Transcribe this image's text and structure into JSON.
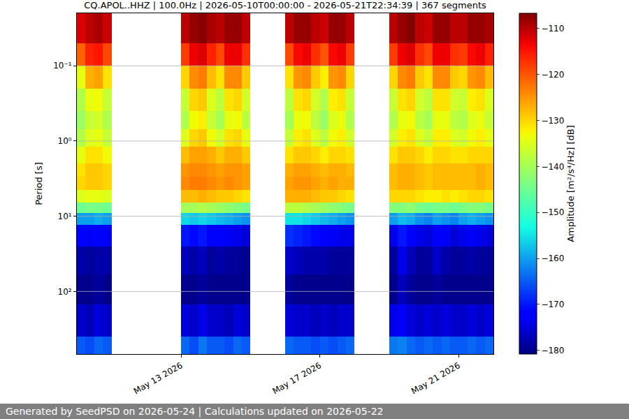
{
  "chart_data": {
    "type": "heatmap",
    "title": "CQ.APOL..HHZ | 100.0Hz | 2026-05-10T00:00:00 - 2026-05-21T22:34:39 | 367 segments",
    "y_label": "Period [s]",
    "x_edges": [
      "2026-05-10 00:00",
      "2026-05-10 06:00",
      "2026-05-10 12:00",
      "2026-05-10 18:00",
      "2026-05-11 00:00",
      "2026-05-11 06:00",
      "2026-05-11 12:00",
      "2026-05-11 18:00",
      "2026-05-12 00:00",
      "2026-05-12 06:00",
      "2026-05-12 12:00",
      "2026-05-12 18:00",
      "2026-05-13 00:00",
      "2026-05-13 06:00",
      "2026-05-13 12:00",
      "2026-05-13 18:00",
      "2026-05-14 00:00",
      "2026-05-14 06:00",
      "2026-05-14 12:00",
      "2026-05-14 18:00",
      "2026-05-15 00:00",
      "2026-05-15 06:00",
      "2026-05-15 12:00",
      "2026-05-15 18:00",
      "2026-05-16 00:00",
      "2026-05-16 06:00",
      "2026-05-16 12:00",
      "2026-05-16 18:00",
      "2026-05-17 00:00",
      "2026-05-17 06:00",
      "2026-05-17 12:00",
      "2026-05-17 18:00",
      "2026-05-18 00:00",
      "2026-05-18 06:00",
      "2026-05-18 12:00",
      "2026-05-18 18:00",
      "2026-05-19 00:00",
      "2026-05-19 06:00",
      "2026-05-19 12:00",
      "2026-05-19 18:00",
      "2026-05-20 00:00",
      "2026-05-20 06:00",
      "2026-05-20 12:00",
      "2026-05-20 18:00",
      "2026-05-21 00:00",
      "2026-05-21 06:00",
      "2026-05-21 12:00",
      "2026-05-21 18:00",
      "2026-05-22 00:00"
    ],
    "y_edges": [
      0.02,
      0.05,
      0.1,
      0.2,
      0.4,
      0.7,
      1.2,
      2,
      3,
      4.5,
      6.5,
      9,
      13,
      25,
      60,
      150,
      400,
      680
    ],
    "cells": [
      [
        -112,
        -110,
        -109,
        -111,
        null,
        null,
        null,
        null,
        null,
        null,
        null,
        null,
        -110,
        -108,
        -107,
        -109,
        -110,
        -108,
        -108,
        -110,
        null,
        null,
        null,
        null,
        -110,
        -108,
        -108,
        -110,
        -111,
        -108,
        -108,
        -110,
        null,
        null,
        null,
        null,
        -110,
        -108,
        -107,
        -110,
        -111,
        -108,
        -108,
        -110,
        -110,
        -108,
        -108,
        -109
      ],
      [
        -121,
        -116,
        -115,
        -119,
        null,
        null,
        null,
        null,
        null,
        null,
        null,
        null,
        -118,
        -113,
        -112,
        -116,
        -119,
        -113,
        -113,
        -117,
        null,
        null,
        null,
        null,
        -119,
        -114,
        -113,
        -117,
        -120,
        -114,
        -113,
        -118,
        null,
        null,
        null,
        null,
        -118,
        -113,
        -112,
        -117,
        -119,
        -113,
        -113,
        -117,
        -118,
        -114,
        -113,
        -116
      ],
      [
        -134,
        -127,
        -126,
        -131,
        null,
        null,
        null,
        null,
        null,
        null,
        null,
        null,
        -130,
        -124,
        -123,
        -128,
        -131,
        -124,
        -124,
        -129,
        null,
        null,
        null,
        null,
        -131,
        -125,
        -124,
        -129,
        -132,
        -125,
        -124,
        -130,
        null,
        null,
        null,
        null,
        -130,
        -124,
        -123,
        -129,
        -131,
        -124,
        -124,
        -129,
        -130,
        -125,
        -124,
        -128
      ],
      [
        -139,
        -134,
        -133,
        -137,
        null,
        null,
        null,
        null,
        null,
        null,
        null,
        null,
        -137,
        -130,
        -129,
        -135,
        -138,
        -131,
        -130,
        -136,
        null,
        null,
        null,
        null,
        -138,
        -131,
        -130,
        -136,
        -139,
        -132,
        -131,
        -137,
        null,
        null,
        null,
        null,
        -137,
        -131,
        -130,
        -136,
        -138,
        -131,
        -131,
        -136,
        -137,
        -132,
        -131,
        -135
      ],
      [
        -141,
        -137,
        -136,
        -139,
        null,
        null,
        null,
        null,
        null,
        null,
        null,
        null,
        -139,
        -133,
        -132,
        -137,
        -140,
        -134,
        -133,
        -138,
        null,
        null,
        null,
        null,
        -140,
        -134,
        -133,
        -138,
        -141,
        -135,
        -134,
        -139,
        null,
        null,
        null,
        null,
        -139,
        -134,
        -133,
        -138,
        -140,
        -134,
        -134,
        -138,
        -139,
        -135,
        -134,
        -137
      ],
      [
        -139,
        -135,
        -134,
        -137,
        null,
        null,
        null,
        null,
        null,
        null,
        null,
        null,
        -135,
        -130,
        -129,
        -133,
        -136,
        -131,
        -130,
        -134,
        null,
        null,
        null,
        null,
        -137,
        -132,
        -131,
        -135,
        -138,
        -133,
        -132,
        -136,
        null,
        null,
        null,
        null,
        -136,
        -132,
        -131,
        -135,
        -137,
        -132,
        -132,
        -135,
        -136,
        -133,
        -132,
        -134
      ],
      [
        -134,
        -131,
        -131,
        -133,
        null,
        null,
        null,
        null,
        null,
        null,
        null,
        null,
        -128,
        -126,
        -126,
        -127,
        -129,
        -127,
        -127,
        -129,
        null,
        null,
        null,
        null,
        -131,
        -129,
        -129,
        -130,
        -132,
        -130,
        -130,
        -131,
        null,
        null,
        null,
        null,
        -131,
        -129,
        -129,
        -130,
        -132,
        -130,
        -130,
        -131,
        -131,
        -130,
        -130,
        -130
      ],
      [
        -131,
        -129,
        -129,
        -130,
        null,
        null,
        null,
        null,
        null,
        null,
        null,
        null,
        -125,
        -124,
        -124,
        -125,
        -126,
        -125,
        -125,
        -126,
        null,
        null,
        null,
        null,
        -127,
        -126,
        -126,
        -127,
        -128,
        -127,
        -127,
        -128,
        null,
        null,
        null,
        null,
        -128,
        -127,
        -127,
        -128,
        -129,
        -128,
        -128,
        -128,
        -128,
        -128,
        -127,
        -128
      ],
      [
        -130,
        -129,
        -129,
        -130,
        null,
        null,
        null,
        null,
        null,
        null,
        null,
        null,
        -124,
        -123,
        -123,
        -124,
        -125,
        -124,
        -125,
        -126,
        null,
        null,
        null,
        null,
        -126,
        -125,
        -125,
        -126,
        -127,
        -126,
        -127,
        -127,
        null,
        null,
        null,
        null,
        -128,
        -127,
        -127,
        -128,
        -129,
        -128,
        -128,
        -128,
        -128,
        -128,
        -127,
        -128
      ],
      [
        -135,
        -134,
        -134,
        -135,
        null,
        null,
        null,
        null,
        null,
        null,
        null,
        null,
        -128,
        -128,
        -127,
        -128,
        -129,
        -129,
        -130,
        -131,
        null,
        null,
        null,
        null,
        -127,
        -127,
        -127,
        -128,
        -129,
        -129,
        -130,
        -131,
        null,
        null,
        null,
        null,
        -130,
        -130,
        -130,
        -131,
        -132,
        -132,
        -131,
        -132,
        -131,
        -130,
        -130,
        -131
      ],
      [
        -145,
        -144,
        -144,
        -145,
        null,
        null,
        null,
        null,
        null,
        null,
        null,
        null,
        -140,
        -140,
        -139,
        -140,
        -141,
        -142,
        -143,
        -144,
        null,
        null,
        null,
        null,
        -138,
        -138,
        -139,
        -140,
        -141,
        -142,
        -143,
        -144,
        null,
        null,
        null,
        null,
        -143,
        -143,
        -142,
        -144,
        -145,
        -144,
        -144,
        -145,
        -144,
        -143,
        -143,
        -144
      ],
      [
        -160,
        -160,
        -159,
        -160,
        null,
        null,
        null,
        null,
        null,
        null,
        null,
        null,
        -156,
        -157,
        -156,
        -157,
        -158,
        -159,
        -160,
        -161,
        null,
        null,
        null,
        null,
        -155,
        -155,
        -156,
        -157,
        -158,
        -159,
        -160,
        -161,
        null,
        null,
        null,
        null,
        -160,
        -158,
        -159,
        -161,
        -162,
        -160,
        -161,
        -162,
        -160,
        -159,
        -160,
        -161
      ],
      [
        -172,
        -173,
        -172,
        -173,
        null,
        null,
        null,
        null,
        null,
        null,
        null,
        null,
        -170,
        -171,
        -170,
        -172,
        -172,
        -173,
        -174,
        -175,
        null,
        null,
        null,
        null,
        -168,
        -169,
        -170,
        -171,
        -172,
        -173,
        -174,
        -174,
        null,
        null,
        null,
        null,
        -174,
        -170,
        -172,
        -174,
        -175,
        -172,
        -173,
        -175,
        -174,
        -173,
        -174,
        -175
      ],
      [
        -178,
        -179,
        -178,
        -178,
        null,
        null,
        null,
        null,
        null,
        null,
        null,
        null,
        -177,
        -178,
        -177,
        -179,
        -178,
        -179,
        -179,
        -180,
        null,
        null,
        null,
        null,
        -176,
        -177,
        -178,
        -178,
        -178,
        -179,
        -179,
        -179,
        null,
        null,
        null,
        null,
        -179,
        -174,
        -177,
        -179,
        -179,
        -176,
        -178,
        -179,
        -179,
        -178,
        -179,
        -179
      ],
      [
        -180,
        -180,
        -179,
        -180,
        null,
        null,
        null,
        null,
        null,
        null,
        null,
        null,
        -180,
        -180,
        -179,
        -180,
        -180,
        -180,
        -180,
        -180,
        null,
        null,
        null,
        null,
        -179,
        -180,
        -180,
        -180,
        -180,
        -180,
        -180,
        -180,
        null,
        null,
        null,
        null,
        -180,
        -177,
        -179,
        -180,
        -180,
        -179,
        -180,
        -180,
        -180,
        -180,
        -180,
        -180
      ],
      [
        -176,
        -177,
        -175,
        -176,
        null,
        null,
        null,
        null,
        null,
        null,
        null,
        null,
        -175,
        -176,
        -174,
        -176,
        -176,
        -177,
        -175,
        -176,
        null,
        null,
        null,
        null,
        -175,
        -176,
        -176,
        -177,
        -176,
        -177,
        -176,
        -176,
        null,
        null,
        null,
        null,
        -174,
        -173,
        -175,
        -176,
        -175,
        -176,
        -175,
        -176,
        -176,
        -175,
        -176,
        -175
      ],
      [
        -165,
        -166,
        -164,
        -165,
        null,
        null,
        null,
        null,
        null,
        null,
        null,
        null,
        -164,
        -166,
        -163,
        -165,
        -165,
        -166,
        -164,
        -165,
        null,
        null,
        null,
        null,
        -164,
        -165,
        -165,
        -166,
        -165,
        -166,
        -165,
        -164,
        null,
        null,
        null,
        null,
        -163,
        -162,
        -164,
        -165,
        -164,
        -165,
        -164,
        -165,
        -165,
        -164,
        -165,
        -164
      ]
    ],
    "xlim": [
      "2026-05-10 00:00",
      "2026-05-22 00:00"
    ],
    "ylim": [
      680,
      0.02
    ],
    "xticks": [
      {
        "value": "2026-05-13",
        "label": "May 13 2026"
      },
      {
        "value": "2026-05-17",
        "label": "May 17 2026"
      },
      {
        "value": "2026-05-21",
        "label": "May 21 2026"
      }
    ],
    "yticks": [
      {
        "value": 0.1,
        "label": "10⁻¹"
      },
      {
        "value": 1,
        "label": "10⁰"
      },
      {
        "value": 10,
        "label": "10¹"
      },
      {
        "value": 100,
        "label": "10²"
      }
    ],
    "log": "y",
    "grid": "y",
    "color": "jet",
    "zlim": [
      -180.8,
      -106.7
    ],
    "zticks": [
      {
        "value": -110,
        "label": "−110"
      },
      {
        "value": -120,
        "label": "−120"
      },
      {
        "value": -130,
        "label": "−130"
      },
      {
        "value": -140,
        "label": "−140"
      },
      {
        "value": -150,
        "label": "−150"
      },
      {
        "value": -160,
        "label": "−160"
      },
      {
        "value": -170,
        "label": "−170"
      },
      {
        "value": -180,
        "label": "−180"
      }
    ],
    "colorbar_label": "Amplitude [m²/s⁴/Hz] [dB]"
  },
  "footer": "Generated by SeedPSD on 2026-05-24 | Calculations updated on 2026-05-22"
}
